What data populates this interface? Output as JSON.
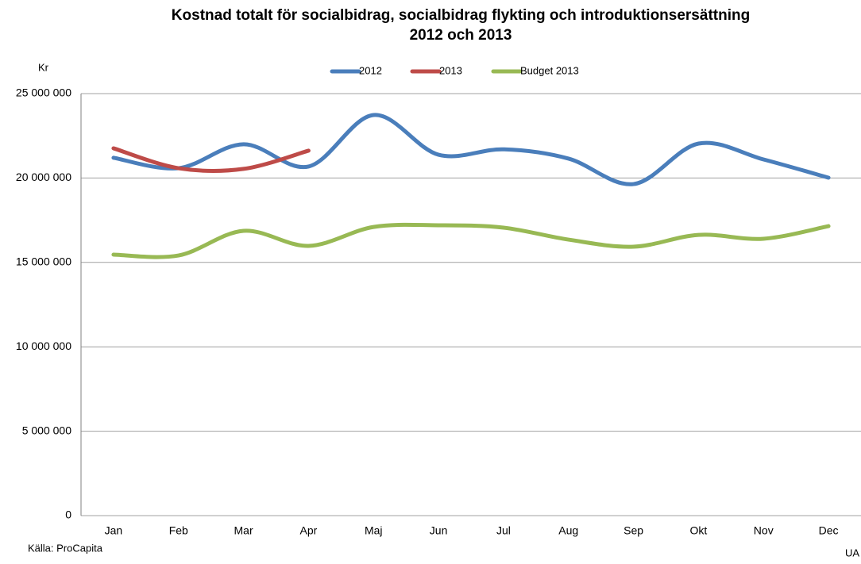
{
  "chart_data": {
    "type": "line",
    "title": [
      "Kostnad totalt för socialbidrag, socialbidrag flykting och introduktionsersättning",
      "2012 och 2013"
    ],
    "y_label": "Kr",
    "source": "Källa: ProCapita",
    "footer_right": "UA",
    "categories": [
      "Jan",
      "Feb",
      "Mar",
      "Apr",
      "Maj",
      "Jun",
      "Jul",
      "Aug",
      "Sep",
      "Okt",
      "Nov",
      "Dec"
    ],
    "series": [
      {
        "name": "2012",
        "color": "#4a7ebb",
        "values": [
          21200000,
          20580000,
          22000000,
          20680000,
          23730000,
          21380000,
          21700000,
          21150000,
          19640000,
          22040000,
          21100000,
          20020000
        ]
      },
      {
        "name": "2013",
        "color": "#be4b48",
        "values": [
          21760000,
          20580000,
          20540000,
          21620000,
          null,
          null,
          null,
          null,
          null,
          null,
          null,
          null
        ]
      },
      {
        "name": "Budget 2013",
        "color": "#98b954",
        "values": [
          15460000,
          15410000,
          16870000,
          15980000,
          17100000,
          17200000,
          17060000,
          16350000,
          15930000,
          16630000,
          16400000,
          17150000
        ]
      }
    ],
    "ylim": [
      0,
      25000000
    ],
    "yticks": [
      0,
      {
        "value": 5000000,
        "label": "5 000 000"
      },
      {
        "value": 10000000,
        "label": "10 000 000"
      },
      {
        "value": 15000000,
        "label": "15 000 000"
      },
      {
        "value": 20000000,
        "label": "20 000 000"
      },
      {
        "value": 25000000,
        "label": "25 000 000"
      }
    ],
    "grid": true,
    "legend": "top",
    "smooth": true
  }
}
